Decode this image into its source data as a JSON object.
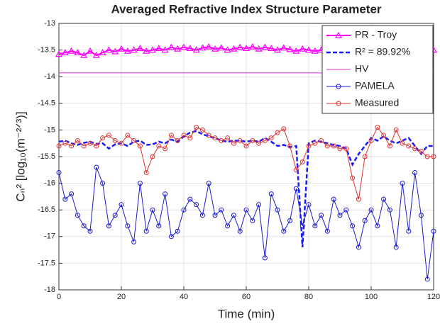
{
  "chart_data": {
    "type": "line",
    "title": "Averaged Refractive Index Structure Parameter",
    "xlabel": "Time (min)",
    "ylabel": "Cₙ² [log₁₀(m⁻²ᐟ³)]",
    "xlim": [
      0,
      120
    ],
    "xticks": [
      0,
      20,
      40,
      60,
      80,
      100,
      120
    ],
    "ylim": [
      -18,
      -13
    ],
    "yticks": [
      -18,
      -17.5,
      -17,
      -16.5,
      -16,
      -15.5,
      -15,
      -14.5,
      -14,
      -13.5,
      -13
    ],
    "grid": true,
    "legend": "top-right",
    "x": [
      0,
      2,
      4,
      6,
      8,
      10,
      12,
      14,
      16,
      18,
      20,
      22,
      24,
      26,
      28,
      30,
      32,
      34,
      36,
      38,
      40,
      42,
      44,
      46,
      48,
      50,
      52,
      54,
      56,
      58,
      60,
      62,
      64,
      66,
      68,
      70,
      72,
      74,
      76,
      78,
      80,
      82,
      84,
      86,
      88,
      90,
      92,
      94,
      96,
      98,
      100,
      102,
      104,
      106,
      108,
      110,
      112,
      114,
      116,
      118,
      120
    ],
    "series": [
      {
        "name": "PR - Troy",
        "color": "#ff00ff",
        "marker": "triangle",
        "dash": false,
        "width": 2,
        "values": [
          -13.58,
          -13.55,
          -13.52,
          -13.55,
          -13.6,
          -13.52,
          -13.6,
          -13.55,
          -13.5,
          -13.53,
          -13.48,
          -13.52,
          -13.5,
          -13.47,
          -13.52,
          -13.5,
          -13.47,
          -13.5,
          -13.45,
          -13.48,
          -13.45,
          -13.47,
          -13.5,
          -13.46,
          -13.44,
          -13.48,
          -13.46,
          -13.5,
          -13.48,
          -13.45,
          -13.47,
          -13.44,
          -13.48,
          -13.45,
          -13.47,
          -13.5,
          -13.46,
          -13.49,
          -13.52,
          -13.48,
          -13.5,
          -13.52,
          -13.5,
          -13.48,
          -13.47,
          -13.49,
          -13.47,
          -13.5,
          -13.47,
          -13.49,
          -13.5,
          -13.47,
          -13.49,
          -13.46,
          -13.48,
          -13.46,
          -13.48,
          -13.47,
          -13.49,
          -13.48,
          -13.5
        ]
      },
      {
        "name": "R² = 89.92%",
        "color": "#1a1aff",
        "marker": "none",
        "dash": true,
        "width": 2.5,
        "values": [
          -15.22,
          -15.2,
          -15.25,
          -15.28,
          -15.24,
          -15.22,
          -15.26,
          -15.25,
          -15.35,
          -15.27,
          -15.25,
          -15.3,
          -15.22,
          -15.2,
          -15.28,
          -15.27,
          -15.22,
          -15.25,
          -15.18,
          -15.22,
          -15.12,
          -15.05,
          -15.02,
          -15.08,
          -15.12,
          -15.15,
          -15.2,
          -15.22,
          -15.2,
          -15.2,
          -15.22,
          -15.2,
          -15.22,
          -15.15,
          -15.22,
          -15.3,
          -15.28,
          -15.32,
          -15.3,
          -17.2,
          -15.25,
          -15.2,
          -15.22,
          -15.25,
          -15.28,
          -15.3,
          -15.35,
          -15.65,
          -15.45,
          -15.3,
          -15.15,
          -15.2,
          -15.12,
          -15.2,
          -15.25,
          -15.2,
          -15.15,
          -15.3,
          -15.45,
          -15.3,
          -15.3
        ]
      },
      {
        "name": "HV",
        "color": "#cc33cc",
        "marker": "none",
        "dash": false,
        "width": 1,
        "x": [
          0,
          120
        ],
        "values": [
          -13.93,
          -13.93
        ]
      },
      {
        "name": "PAMELA",
        "color": "#1a1acc",
        "marker": "circle",
        "dash": false,
        "width": 1,
        "values": [
          -15.8,
          -16.3,
          -16.2,
          -16.6,
          -16.8,
          -16.9,
          -15.7,
          -16.0,
          -16.8,
          -16.6,
          -16.4,
          -16.8,
          -17.1,
          -16.0,
          -16.9,
          -16.5,
          -16.8,
          -16.2,
          -17.0,
          -16.9,
          -16.5,
          -16.3,
          -16.4,
          -16.6,
          -16.0,
          -16.6,
          -16.5,
          -16.8,
          -16.6,
          -16.9,
          -16.5,
          -16.7,
          -16.4,
          -17.4,
          -16.2,
          -16.5,
          -16.9,
          -16.7,
          -16.1,
          -16.8,
          -16.4,
          -16.8,
          -16.6,
          -16.9,
          -16.3,
          -16.6,
          -16.5,
          -16.8,
          -17.2,
          -16.7,
          -16.5,
          -16.8,
          -16.3,
          -16.5,
          -17.2,
          -16.0,
          -16.9,
          -15.8,
          -16.6,
          -17.8,
          -16.9
        ]
      },
      {
        "name": "Measured",
        "color": "#e03030",
        "marker": "circle",
        "dash": false,
        "width": 1,
        "values": [
          -15.3,
          -15.25,
          -15.3,
          -15.2,
          -15.3,
          -15.25,
          -15.3,
          -15.15,
          -15.1,
          -15.2,
          -15.25,
          -15.1,
          -15.2,
          -15.3,
          -15.8,
          -15.5,
          -15.3,
          -15.35,
          -15.1,
          -15.2,
          -15.1,
          -15.15,
          -14.95,
          -15.0,
          -15.1,
          -15.15,
          -15.2,
          -15.15,
          -15.25,
          -15.2,
          -15.3,
          -15.2,
          -15.25,
          -15.2,
          -15.15,
          -15.05,
          -14.98,
          -15.3,
          -15.75,
          -15.6,
          -15.3,
          -15.25,
          -15.2,
          -15.3,
          -15.3,
          -15.35,
          -15.35,
          -15.9,
          -16.3,
          -15.5,
          -15.2,
          -14.95,
          -15.1,
          -15.3,
          -15.0,
          -15.25,
          -15.3,
          -15.35,
          -15.4,
          -15.5,
          -15.5
        ]
      }
    ]
  }
}
